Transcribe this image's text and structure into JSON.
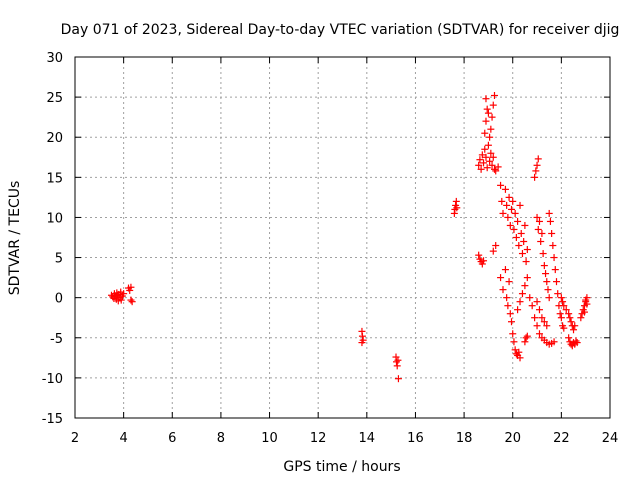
{
  "chart_data": {
    "type": "scatter",
    "title": "Day 071 of 2023, Sidereal Day-to-day VTEC variation (SDTVAR) for receiver djig",
    "xlabel": "GPS time / hours",
    "ylabel": "SDTVAR / TECUs",
    "xlim": [
      2,
      24
    ],
    "ylim": [
      -15,
      30
    ],
    "xticks": [
      2,
      4,
      6,
      8,
      10,
      12,
      14,
      16,
      18,
      20,
      22,
      24
    ],
    "yticks": [
      -15,
      -10,
      -5,
      0,
      5,
      10,
      15,
      20,
      25,
      30
    ],
    "grid": true,
    "marker": "+",
    "color": "#ff0000",
    "series": [
      {
        "name": "SDTVAR",
        "points": [
          [
            3.5,
            0.3
          ],
          [
            3.55,
            0.1
          ],
          [
            3.6,
            -0.1
          ],
          [
            3.62,
            0.5
          ],
          [
            3.65,
            0.2
          ],
          [
            3.7,
            -0.2
          ],
          [
            3.72,
            0.6
          ],
          [
            3.75,
            0.3
          ],
          [
            3.78,
            -0.4
          ],
          [
            3.8,
            0.4
          ],
          [
            3.85,
            0.0
          ],
          [
            3.88,
            0.7
          ],
          [
            3.9,
            -0.3
          ],
          [
            3.95,
            0.2
          ],
          [
            4.0,
            0.5
          ],
          [
            4.2,
            1.2
          ],
          [
            4.25,
            0.9
          ],
          [
            4.3,
            1.3
          ],
          [
            4.3,
            -0.3
          ],
          [
            4.35,
            -0.5
          ],
          [
            13.8,
            -4.2
          ],
          [
            13.82,
            -4.8
          ],
          [
            13.85,
            -5.3
          ],
          [
            13.8,
            -5.6
          ],
          [
            15.2,
            -7.4
          ],
          [
            15.22,
            -8.0
          ],
          [
            15.25,
            -8.5
          ],
          [
            15.28,
            -7.8
          ],
          [
            15.3,
            -10.1
          ],
          [
            17.6,
            10.5
          ],
          [
            17.62,
            11.0
          ],
          [
            17.65,
            11.5
          ],
          [
            17.68,
            12.0
          ],
          [
            17.7,
            11.2
          ],
          [
            18.6,
            5.3
          ],
          [
            18.65,
            4.8
          ],
          [
            18.7,
            4.5
          ],
          [
            18.75,
            4.2
          ],
          [
            18.8,
            4.6
          ],
          [
            18.6,
            16.5
          ],
          [
            18.65,
            17.2
          ],
          [
            18.7,
            16.0
          ],
          [
            18.75,
            17.8
          ],
          [
            18.8,
            16.8
          ],
          [
            18.85,
            18.5
          ],
          [
            18.9,
            17.5
          ],
          [
            18.95,
            16.2
          ],
          [
            19.0,
            19.0
          ],
          [
            19.05,
            17.0
          ],
          [
            19.1,
            18.0
          ],
          [
            19.15,
            16.5
          ],
          [
            19.2,
            17.5
          ],
          [
            19.25,
            16.0
          ],
          [
            19.3,
            15.8
          ],
          [
            18.85,
            20.5
          ],
          [
            18.9,
            22.0
          ],
          [
            18.95,
            23.5
          ],
          [
            18.9,
            24.8
          ],
          [
            19.0,
            23.0
          ],
          [
            19.1,
            21.0
          ],
          [
            19.15,
            22.5
          ],
          [
            19.2,
            24.0
          ],
          [
            19.25,
            25.2
          ],
          [
            19.05,
            20.0
          ],
          [
            19.4,
            16.3
          ],
          [
            19.5,
            14.0
          ],
          [
            19.55,
            12.0
          ],
          [
            19.6,
            10.5
          ],
          [
            19.7,
            13.5
          ],
          [
            19.75,
            11.5
          ],
          [
            19.8,
            10.0
          ],
          [
            19.85,
            12.5
          ],
          [
            19.9,
            9.0
          ],
          [
            19.95,
            11.0
          ],
          [
            20.0,
            12.0
          ],
          [
            20.05,
            8.5
          ],
          [
            20.1,
            10.5
          ],
          [
            20.15,
            7.5
          ],
          [
            20.2,
            9.5
          ],
          [
            20.25,
            6.5
          ],
          [
            20.3,
            11.5
          ],
          [
            20.35,
            8.0
          ],
          [
            20.4,
            5.5
          ],
          [
            20.45,
            7.0
          ],
          [
            20.5,
            9.0
          ],
          [
            20.55,
            4.5
          ],
          [
            20.6,
            6.0
          ],
          [
            19.2,
            5.8
          ],
          [
            19.3,
            6.5
          ],
          [
            19.5,
            2.5
          ],
          [
            19.6,
            1.0
          ],
          [
            19.7,
            3.5
          ],
          [
            19.75,
            0.0
          ],
          [
            19.8,
            -1.0
          ],
          [
            19.85,
            2.0
          ],
          [
            19.9,
            -2.0
          ],
          [
            19.95,
            -3.0
          ],
          [
            20.0,
            -4.5
          ],
          [
            20.05,
            -5.5
          ],
          [
            20.1,
            -6.5
          ],
          [
            20.15,
            -7.0
          ],
          [
            20.2,
            -7.2
          ],
          [
            20.25,
            -6.8
          ],
          [
            20.3,
            -7.5
          ],
          [
            20.2,
            -1.5
          ],
          [
            20.3,
            -0.5
          ],
          [
            20.4,
            0.5
          ],
          [
            20.5,
            1.5
          ],
          [
            20.6,
            2.5
          ],
          [
            20.7,
            0.0
          ],
          [
            20.8,
            -1.0
          ],
          [
            20.9,
            -2.5
          ],
          [
            20.5,
            -5.5
          ],
          [
            20.55,
            -5.0
          ],
          [
            20.6,
            -4.8
          ],
          [
            20.9,
            15.0
          ],
          [
            20.95,
            15.8
          ],
          [
            21.0,
            16.5
          ],
          [
            21.05,
            17.3
          ],
          [
            21.0,
            10.0
          ],
          [
            21.05,
            8.5
          ],
          [
            21.1,
            9.5
          ],
          [
            21.15,
            7.0
          ],
          [
            21.2,
            8.0
          ],
          [
            21.25,
            5.5
          ],
          [
            21.3,
            4.0
          ],
          [
            21.35,
            3.0
          ],
          [
            21.4,
            2.0
          ],
          [
            21.45,
            1.0
          ],
          [
            21.5,
            0.0
          ],
          [
            21.0,
            -0.5
          ],
          [
            21.1,
            -1.5
          ],
          [
            21.2,
            -2.5
          ],
          [
            21.3,
            -3.0
          ],
          [
            21.4,
            -3.5
          ],
          [
            21.0,
            -3.5
          ],
          [
            21.1,
            -4.5
          ],
          [
            21.2,
            -5.0
          ],
          [
            21.3,
            -5.3
          ],
          [
            21.4,
            -5.6
          ],
          [
            21.5,
            -5.8
          ],
          [
            21.6,
            -5.7
          ],
          [
            21.7,
            -5.5
          ],
          [
            21.5,
            10.5
          ],
          [
            21.55,
            9.5
          ],
          [
            21.6,
            8.0
          ],
          [
            21.65,
            6.5
          ],
          [
            21.7,
            5.0
          ],
          [
            21.75,
            3.5
          ],
          [
            21.8,
            2.0
          ],
          [
            21.85,
            0.5
          ],
          [
            21.9,
            -1.0
          ],
          [
            21.95,
            -2.0
          ],
          [
            22.0,
            -2.5
          ],
          [
            22.05,
            -3.5
          ],
          [
            22.1,
            -3.8
          ],
          [
            22.0,
            0.0
          ],
          [
            22.05,
            -0.5
          ],
          [
            22.1,
            -1.0
          ],
          [
            22.2,
            -1.5
          ],
          [
            22.3,
            -2.0
          ],
          [
            22.35,
            -2.5
          ],
          [
            22.4,
            -3.0
          ],
          [
            22.45,
            -3.5
          ],
          [
            22.5,
            -4.0
          ],
          [
            22.55,
            -3.5
          ],
          [
            22.3,
            -5.0
          ],
          [
            22.35,
            -5.5
          ],
          [
            22.4,
            -5.8
          ],
          [
            22.45,
            -6.0
          ],
          [
            22.5,
            -5.6
          ],
          [
            22.55,
            -5.8
          ],
          [
            22.6,
            -5.4
          ],
          [
            22.65,
            -5.6
          ],
          [
            22.8,
            -2.5
          ],
          [
            22.85,
            -2.0
          ],
          [
            22.9,
            -1.5
          ],
          [
            22.95,
            -1.0
          ],
          [
            23.0,
            -0.5
          ],
          [
            23.05,
            0.0
          ],
          [
            23.0,
            -0.3
          ],
          [
            22.95,
            -1.8
          ],
          [
            23.05,
            -0.8
          ]
        ]
      }
    ]
  }
}
